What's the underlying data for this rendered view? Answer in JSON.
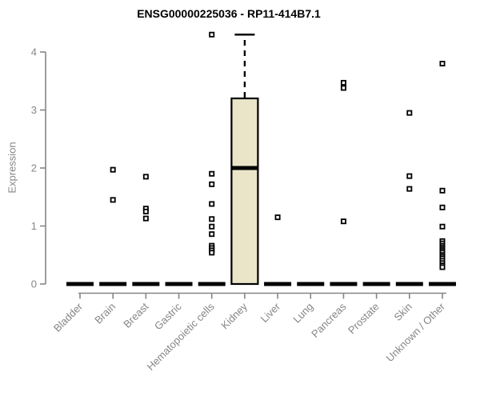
{
  "chart_data": {
    "type": "boxplot",
    "title": "ENSG00000225036 - RP11-414B7.1",
    "xlabel": "",
    "ylabel": "Expression",
    "categories": [
      "Bladder",
      "Brain",
      "Breast",
      "Gastric",
      "Hematopoietic cells",
      "Kidney",
      "Liver",
      "Lung",
      "Pancreas",
      "Prostate",
      "Skin",
      "Unknown / Other"
    ],
    "yticks": [
      0,
      1,
      2,
      3,
      4
    ],
    "ylim": [
      0,
      4.35
    ],
    "grid": false,
    "legend": "none",
    "x_label_rotation_deg": 45,
    "boxes": [
      {
        "category": "Bladder",
        "q1": 0,
        "median": 0,
        "q3": 0,
        "whisker_low": 0,
        "whisker_high": 0,
        "outliers": []
      },
      {
        "category": "Brain",
        "q1": 0,
        "median": 0,
        "q3": 0,
        "whisker_low": 0,
        "whisker_high": 0,
        "outliers": [
          1.97,
          1.45
        ]
      },
      {
        "category": "Breast",
        "q1": 0,
        "median": 0,
        "q3": 0,
        "whisker_low": 0,
        "whisker_high": 0,
        "outliers": [
          1.85,
          1.3,
          1.25,
          1.13
        ]
      },
      {
        "category": "Gastric",
        "q1": 0,
        "median": 0,
        "q3": 0,
        "whisker_low": 0,
        "whisker_high": 0,
        "outliers": []
      },
      {
        "category": "Hematopoietic cells",
        "q1": 0,
        "median": 0,
        "q3": 0,
        "whisker_low": 0,
        "whisker_high": 0,
        "outliers": [
          4.3,
          1.9,
          1.72,
          1.38,
          1.12,
          0.99,
          0.86,
          0.66,
          0.62,
          0.58,
          0.54
        ]
      },
      {
        "category": "Kidney",
        "q1": 0,
        "median": 2.0,
        "q3": 3.2,
        "whisker_low": 0,
        "whisker_high": 4.3,
        "outliers": []
      },
      {
        "category": "Liver",
        "q1": 0,
        "median": 0,
        "q3": 0,
        "whisker_low": 0,
        "whisker_high": 0,
        "outliers": [
          1.15
        ]
      },
      {
        "category": "Lung",
        "q1": 0,
        "median": 0,
        "q3": 0,
        "whisker_low": 0,
        "whisker_high": 0,
        "outliers": []
      },
      {
        "category": "Pancreas",
        "q1": 0,
        "median": 0,
        "q3": 0,
        "whisker_low": 0,
        "whisker_high": 0,
        "outliers": [
          3.47,
          3.38,
          1.08
        ]
      },
      {
        "category": "Prostate",
        "q1": 0,
        "median": 0,
        "q3": 0,
        "whisker_low": 0,
        "whisker_high": 0,
        "outliers": []
      },
      {
        "category": "Skin",
        "q1": 0,
        "median": 0,
        "q3": 0,
        "whisker_low": 0,
        "whisker_high": 0,
        "outliers": [
          2.95,
          1.86,
          1.64
        ]
      },
      {
        "category": "Unknown / Other",
        "q1": 0,
        "median": 0,
        "q3": 0,
        "whisker_low": 0,
        "whisker_high": 0,
        "outliers": [
          3.8,
          1.61,
          1.32,
          0.99,
          0.74,
          0.7,
          0.66,
          0.63,
          0.6,
          0.57,
          0.54,
          0.5,
          0.47,
          0.44,
          0.4,
          0.36,
          0.32,
          0.29
        ]
      }
    ],
    "colors": {
      "box_fill": "#EAE5C9",
      "box_stroke": "#000000",
      "median": "#000000",
      "zero_bar": "#000000",
      "outlier_stroke": "#000000",
      "outlier_fill": "#ffffff",
      "axis": "#868686",
      "tick_label": "#868686",
      "title": "#000000"
    }
  }
}
